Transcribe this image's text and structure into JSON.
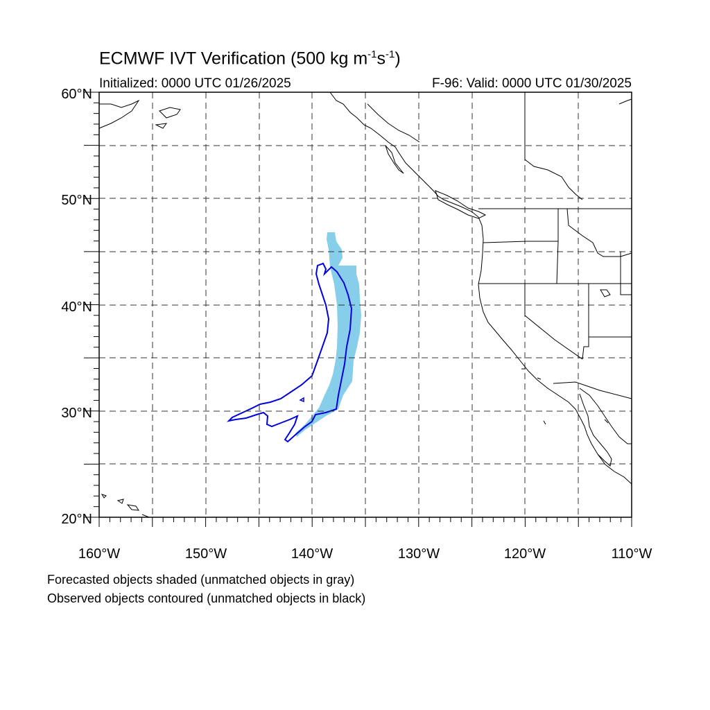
{
  "title": {
    "main": "ECMWF IVT Verification (500 kg m",
    "sup1": "-1",
    "mid": "s",
    "sup2": "-1",
    "end": ")"
  },
  "initialized": "Initialized: 0000 UTC 01/26/2025",
  "valid": "F-96: Valid: 0000 UTC 01/30/2025",
  "lat_labels": [
    "60°N",
    "50°N",
    "40°N",
    "30°N",
    "20°N"
  ],
  "lon_labels": [
    "160°W",
    "150°W",
    "140°W",
    "130°W",
    "120°W",
    "110°W"
  ],
  "footnotes": [
    "Forecasted objects shaded (unmatched objects in gray)",
    "Observed objects contoured (unmatched objects in black)"
  ],
  "colors": {
    "forecast_fill": "#87ceeb",
    "observed_contour": "#0000dd",
    "coast": "#000000",
    "grid": "#333333"
  },
  "map_extent": {
    "lon": [
      -160,
      -110
    ],
    "lat": [
      20,
      60
    ]
  }
}
